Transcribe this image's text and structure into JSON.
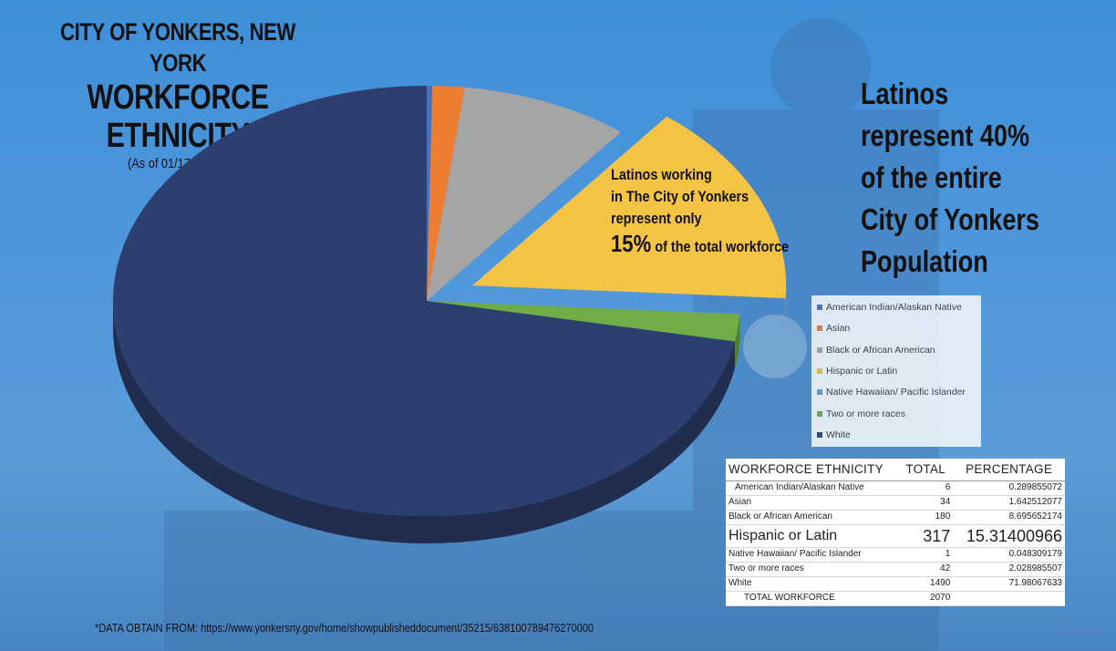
{
  "title": {
    "line1": "CITY OF YONKERS, NEW YORK",
    "line2": "WORKFORCE ETHNICITY",
    "line3": "(As of 01/17/2023)*"
  },
  "right_note": "Latinos represent 40% of the entire City of Yonkers Population",
  "callout": {
    "line1": "Latinos working",
    "line2": "in The City of Yonkers",
    "line3": "represent only",
    "pct": "15%",
    "rest": " of the total workforce"
  },
  "source": "*DATA OBTAIN FROM: https://www.yonkersny.gov/home/showpublisheddocument/35215/638100789476270000",
  "chart_data": {
    "type": "pie",
    "title": "WORKFORCE ETHNICITY",
    "legend_position": "right",
    "categories": [
      "American Indian/Alaskan Native",
      "Asian",
      "Black or African American",
      "Hispanic or Latin",
      "Native Hawaiian/ Pacific Islander",
      "Two or more races",
      "White"
    ],
    "values": [
      6,
      34,
      180,
      317,
      1,
      42,
      1490
    ],
    "colors": [
      "#4472c4",
      "#ed7d31",
      "#a5a5a5",
      "#f6c445",
      "#5b9bd5",
      "#70ad47",
      "#2c3f6e"
    ],
    "exploded": [
      false,
      false,
      false,
      true,
      false,
      false,
      false
    ]
  },
  "table": {
    "headers": [
      "WORKFORCE ETHNICITY",
      "TOTAL",
      "PERCENTAGE"
    ],
    "rows": [
      [
        "American Indian/Alaskan Native",
        "6",
        "0.289855072"
      ],
      [
        "Asian",
        "34",
        "1.642512077"
      ],
      [
        "Black or African American",
        "180",
        "8.695652174"
      ],
      [
        "Hispanic or Latin",
        "317",
        "15.31400966"
      ],
      [
        "Native Hawaiian/ Pacific Islander",
        "1",
        "0.048309179"
      ],
      [
        "Two or more races",
        "42",
        "2.028985507"
      ],
      [
        "White",
        "1490",
        "71.98067633"
      ]
    ],
    "total_label": "TOTAL WORKFORCE",
    "total_value": "2070"
  }
}
